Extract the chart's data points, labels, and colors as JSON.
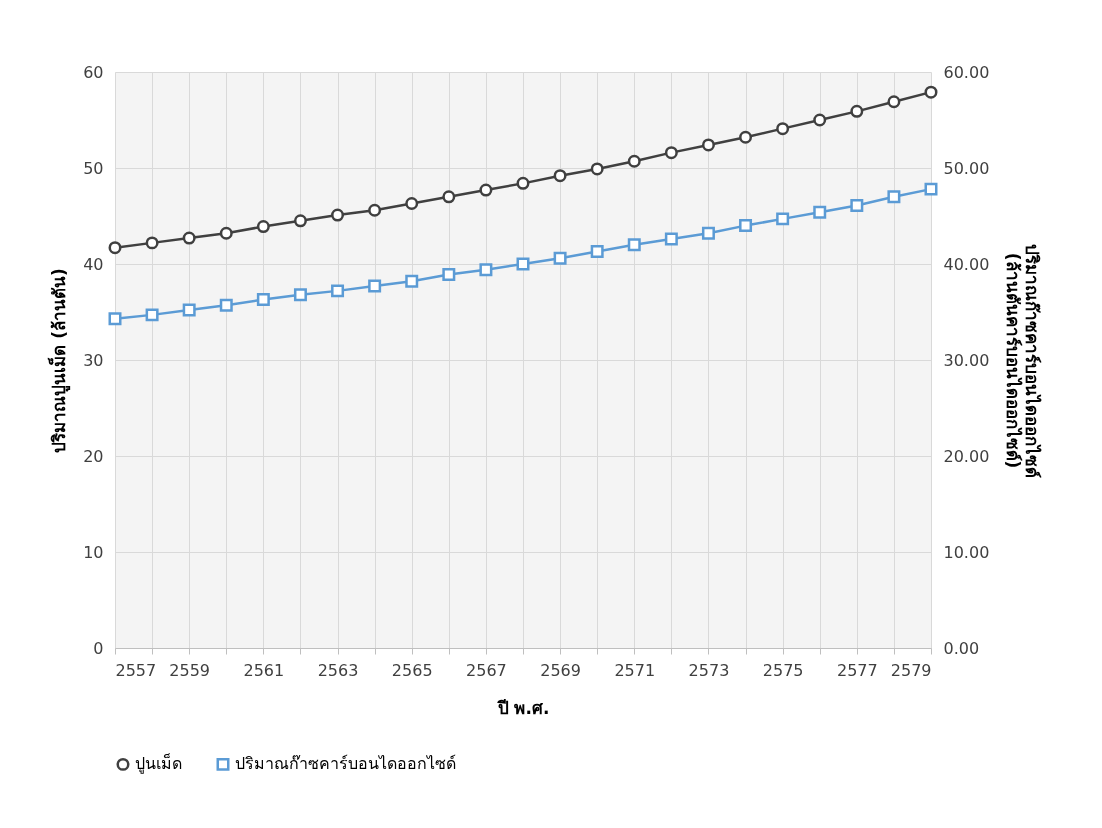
{
  "chart_data": {
    "type": "line",
    "xlabel": "ปี พ.ศ.",
    "ylabel": "ปริมาณปูนเม็ด (ล้านตัน)",
    "y2label": "ปริมาณก๊าซคาร์บอนไดออกไซด์\n(ล้านตันคาร์บอนไดออกไซด์)",
    "x": [
      2557,
      2558,
      2559,
      2560,
      2561,
      2562,
      2563,
      2564,
      2565,
      2566,
      2567,
      2568,
      2569,
      2570,
      2571,
      2572,
      2573,
      2574,
      2575,
      2576,
      2577,
      2578,
      2579
    ],
    "series": [
      {
        "name": "ปูนเม็ด",
        "color": "#404040",
        "marker": "circle",
        "values": [
          41.7,
          42.2,
          42.7,
          43.2,
          43.9,
          44.5,
          45.1,
          45.6,
          46.3,
          47.0,
          47.7,
          48.4,
          49.2,
          49.9,
          50.7,
          51.6,
          52.4,
          53.2,
          54.1,
          55.0,
          55.9,
          56.9,
          57.9
        ]
      },
      {
        "name": "ปริมาณก๊าซคาร์บอนไดออกไซด์",
        "color": "#5b9bd5",
        "marker": "square",
        "axis": "y2",
        "values": [
          34.3,
          34.7,
          35.2,
          35.7,
          36.3,
          36.8,
          37.2,
          37.7,
          38.2,
          38.9,
          39.4,
          40.0,
          40.6,
          41.3,
          42.0,
          42.6,
          43.2,
          44.0,
          44.7,
          45.4,
          46.1,
          47.0,
          47.8
        ]
      }
    ],
    "xlim": [
      2557,
      2579
    ],
    "xticks": [
      2557,
      {
        "value": 2558,
        "label": null
      },
      2559,
      {
        "value": 2560,
        "label": null
      },
      2561,
      {
        "value": 2562,
        "label": null
      },
      2563,
      {
        "value": 2564,
        "label": null
      },
      2565,
      {
        "value": 2566,
        "label": null
      },
      2567,
      {
        "value": 2568,
        "label": null
      },
      2569,
      {
        "value": 2570,
        "label": null
      },
      2571,
      {
        "value": 2572,
        "label": null
      },
      2573,
      {
        "value": 2574,
        "label": null
      },
      2575,
      {
        "value": 2576,
        "label": null
      },
      2577,
      {
        "value": 2578,
        "label": null
      },
      2579
    ],
    "ylim": [
      0,
      60
    ],
    "yticks": [
      0,
      10,
      20,
      30,
      40,
      50,
      60
    ],
    "y2lim": [
      0,
      60
    ],
    "y2ticks": [
      {
        "value": 0,
        "label": "0.00"
      },
      {
        "value": 10,
        "label": "10.00"
      },
      {
        "value": 20,
        "label": "20.00"
      },
      {
        "value": 30,
        "label": "30.00"
      },
      {
        "value": 40,
        "label": "40.00"
      },
      {
        "value": 50,
        "label": "50.00"
      },
      {
        "value": 60,
        "label": "60.00"
      }
    ],
    "grid": true,
    "legend": "bottom",
    "line_style": "solid"
  }
}
